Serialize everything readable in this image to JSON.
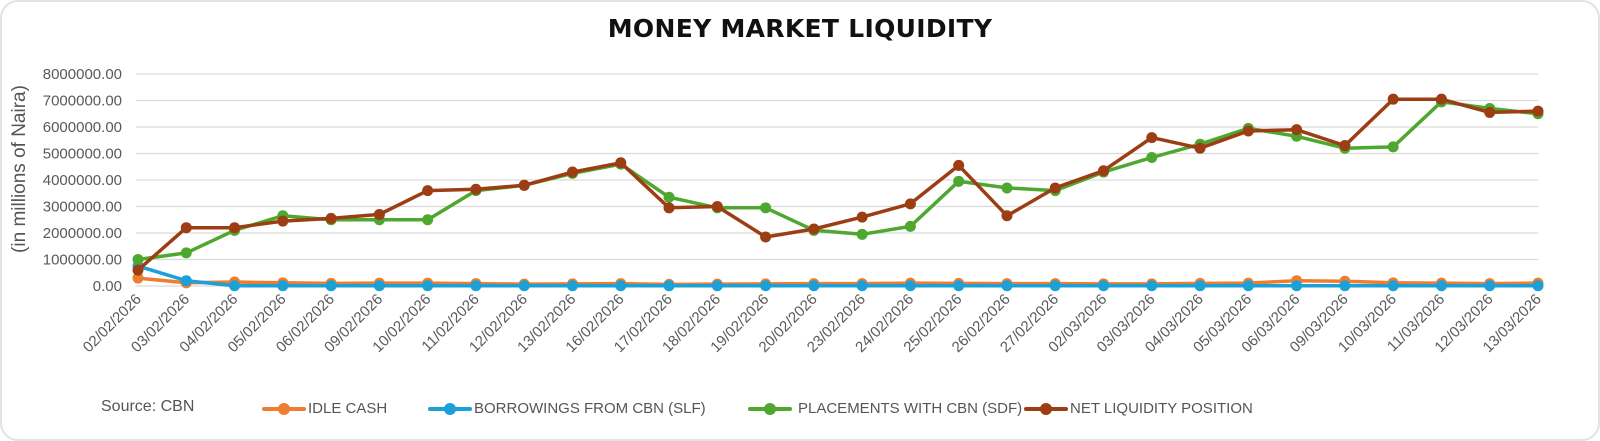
{
  "chart_data": {
    "type": "line",
    "title": "MONEY MARKET LIQUIDITY",
    "xlabel": "",
    "ylabel": "(in millions of Naira)",
    "ylim": [
      0,
      8000000
    ],
    "yticks": [
      "0.00",
      "1000000.00",
      "2000000.00",
      "3000000.00",
      "4000000.00",
      "5000000.00",
      "6000000.00",
      "7000000.00",
      "8000000.00"
    ],
    "grid": true,
    "legend_position": "bottom",
    "source": "Source: CBN",
    "categories": [
      "02/02/2026",
      "03/02/2026",
      "04/02/2026",
      "05/02/2026",
      "06/02/2026",
      "09/02/2026",
      "10/02/2026",
      "11/02/2026",
      "12/02/2026",
      "13/02/2026",
      "16/02/2026",
      "17/02/2026",
      "18/02/2026",
      "19/02/2026",
      "20/02/2026",
      "23/02/2026",
      "24/02/2026",
      "25/02/2026",
      "26/02/2026",
      "27/02/2026",
      "02/03/2026",
      "03/03/2026",
      "04/03/2026",
      "05/03/2026",
      "06/03/2026",
      "09/03/2026",
      "10/03/2026",
      "11/03/2026",
      "12/03/2026",
      "13/03/2026"
    ],
    "series": [
      {
        "name": "IDLE CASH",
        "color": "#ED7D31",
        "values": [
          300000,
          120000,
          150000,
          120000,
          100000,
          110000,
          110000,
          90000,
          70000,
          80000,
          90000,
          60000,
          70000,
          80000,
          90000,
          90000,
          110000,
          100000,
          90000,
          90000,
          80000,
          80000,
          100000,
          110000,
          200000,
          180000,
          120000,
          110000,
          90000,
          110000
        ]
      },
      {
        "name": "BORROWINGS FROM CBN (SLF)",
        "color": "#1BA1D8",
        "values": [
          750000,
          200000,
          10000,
          10000,
          10000,
          10000,
          10000,
          10000,
          10000,
          10000,
          10000,
          10000,
          10000,
          10000,
          10000,
          10000,
          10000,
          10000,
          10000,
          10000,
          10000,
          10000,
          10000,
          10000,
          10000,
          10000,
          10000,
          10000,
          10000,
          10000
        ]
      },
      {
        "name": "PLACEMENTS WITH CBN (SDF)",
        "color": "#4EA72E",
        "values": [
          1000000,
          1250000,
          2100000,
          2650000,
          2500000,
          2500000,
          2500000,
          3600000,
          3800000,
          4250000,
          4600000,
          3350000,
          2950000,
          2950000,
          2100000,
          1950000,
          2250000,
          3950000,
          3700000,
          3600000,
          4300000,
          4850000,
          5350000,
          5950000,
          5650000,
          5200000,
          5250000,
          6950000,
          6700000,
          6500000
        ]
      },
      {
        "name": "NET LIQUIDITY POSITION",
        "color": "#9C3D14",
        "values": [
          600000,
          2200000,
          2200000,
          2450000,
          2550000,
          2700000,
          3600000,
          3650000,
          3800000,
          4300000,
          4650000,
          2950000,
          3000000,
          1850000,
          2150000,
          2600000,
          3100000,
          4550000,
          2650000,
          3700000,
          4350000,
          5600000,
          5200000,
          5850000,
          5900000,
          5300000,
          7050000,
          7050000,
          6550000,
          6600000
        ]
      }
    ]
  }
}
